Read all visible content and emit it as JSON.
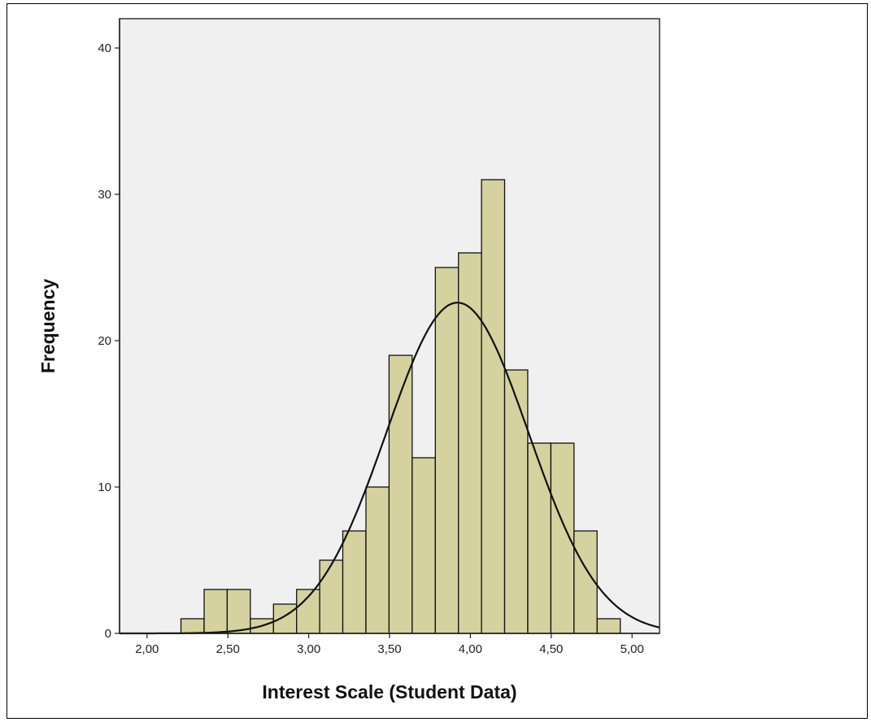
{
  "chart_data": {
    "type": "bar",
    "title": "",
    "xlabel": "Interest Scale (Student Data)",
    "ylabel": "Frequency",
    "xlim": [
      1.83,
      5.17
    ],
    "ylim": [
      0,
      42
    ],
    "x_ticks": [
      {
        "value": 2.0,
        "label": "2,00"
      },
      {
        "value": 2.5,
        "label": "2,50"
      },
      {
        "value": 3.0,
        "label": "3,00"
      },
      {
        "value": 3.5,
        "label": "3,50"
      },
      {
        "value": 4.0,
        "label": "4,00"
      },
      {
        "value": 4.5,
        "label": "4,50"
      },
      {
        "value": 5.0,
        "label": "5,00"
      }
    ],
    "y_ticks": [
      {
        "value": 0,
        "label": "0"
      },
      {
        "value": 10,
        "label": "10"
      },
      {
        "value": 20,
        "label": "20"
      },
      {
        "value": 30,
        "label": "30"
      },
      {
        "value": 40,
        "label": "40"
      }
    ],
    "bin_width": 0.143,
    "bins": [
      {
        "start": 2.21,
        "count": 1
      },
      {
        "start": 2.353,
        "count": 3
      },
      {
        "start": 2.496,
        "count": 3
      },
      {
        "start": 2.639,
        "count": 1
      },
      {
        "start": 2.782,
        "count": 2
      },
      {
        "start": 2.925,
        "count": 3
      },
      {
        "start": 3.068,
        "count": 5
      },
      {
        "start": 3.211,
        "count": 7
      },
      {
        "start": 3.354,
        "count": 10
      },
      {
        "start": 3.497,
        "count": 19
      },
      {
        "start": 3.64,
        "count": 12
      },
      {
        "start": 3.783,
        "count": 25
      },
      {
        "start": 3.926,
        "count": 26
      },
      {
        "start": 4.069,
        "count": 31
      },
      {
        "start": 4.212,
        "count": 18
      },
      {
        "start": 4.355,
        "count": 13
      },
      {
        "start": 4.498,
        "count": 13
      },
      {
        "start": 4.641,
        "count": 7
      },
      {
        "start": 4.784,
        "count": 1
      }
    ],
    "normal_curve": {
      "mean": 3.92,
      "sd": 0.44,
      "peak": 22.6
    },
    "grid": false,
    "colors": {
      "bar_fill": "#d6d2a0",
      "bar_stroke": "#111111",
      "plot_bg": "#f0f0f0",
      "curve": "#111111"
    }
  }
}
